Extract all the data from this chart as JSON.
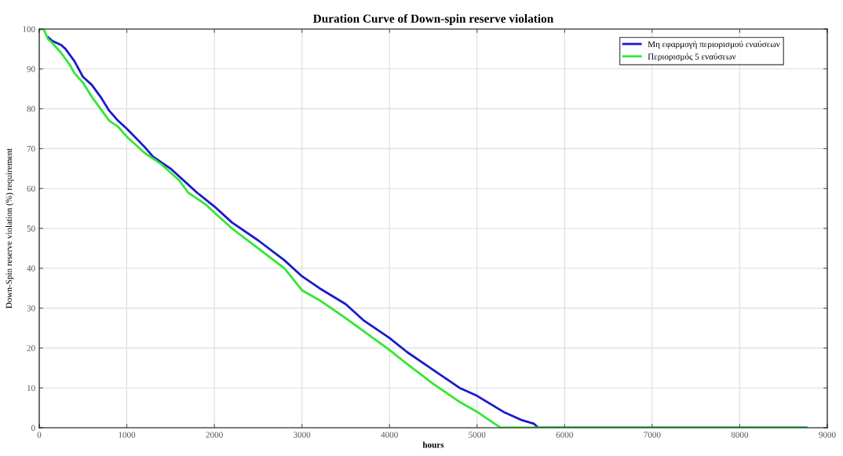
{
  "chart_data": {
    "type": "line",
    "title": "Duration Curve of Down-spin reserve violation",
    "xlabel": "hours",
    "ylabel": "Down-Spin reserve violation (%) requirement",
    "xlim": [
      0,
      9000
    ],
    "xticks": [
      0,
      1000,
      2000,
      3000,
      4000,
      5000,
      6000,
      7000,
      8000,
      9000
    ],
    "ylim": [
      0,
      100
    ],
    "yticks": [
      0,
      10,
      20,
      30,
      40,
      50,
      60,
      70,
      80,
      90,
      100
    ],
    "grid": true,
    "legend": "top right",
    "line_style": "solid",
    "marker": "none",
    "series": [
      {
        "name": "Μη εφαρμογή περιορισμού εναύσεων",
        "color": "#1a1acc",
        "x": [
          100,
          150,
          250,
          300,
          400,
          500,
          600,
          700,
          800,
          900,
          1000,
          1200,
          1300,
          1500,
          1700,
          1800,
          2000,
          2200,
          2500,
          2800,
          3000,
          3200,
          3500,
          3700,
          4000,
          4200,
          4500,
          4800,
          5000,
          5300,
          5500,
          5650,
          5700,
          8760
        ],
        "values": [
          98,
          97,
          96,
          95,
          92,
          88,
          86,
          83,
          79.5,
          77,
          75,
          70.5,
          68,
          65,
          61,
          59,
          55.5,
          51.5,
          47,
          42,
          38,
          35,
          31,
          27,
          22.5,
          19,
          14.5,
          10,
          8,
          4,
          2,
          1,
          0,
          0
        ]
      },
      {
        "name": "Περιορισμός 5 εναύσεων",
        "color": "#33e633",
        "x": [
          0,
          50,
          100,
          150,
          250,
          350,
          400,
          500,
          600,
          700,
          800,
          900,
          1000,
          1200,
          1400,
          1600,
          1700,
          1900,
          2000,
          2200,
          2500,
          2800,
          3000,
          3200,
          3500,
          4000,
          4200,
          4500,
          4800,
          5000,
          5200,
          5270,
          8760
        ],
        "values": [
          100,
          100,
          97.5,
          96.5,
          94,
          91,
          89,
          86.5,
          83,
          80,
          77,
          75.5,
          73,
          69,
          66,
          62,
          59,
          56,
          54,
          50,
          45,
          40,
          34.5,
          32,
          27.5,
          19.5,
          16,
          11,
          6.5,
          4,
          1,
          0,
          0
        ]
      }
    ]
  }
}
